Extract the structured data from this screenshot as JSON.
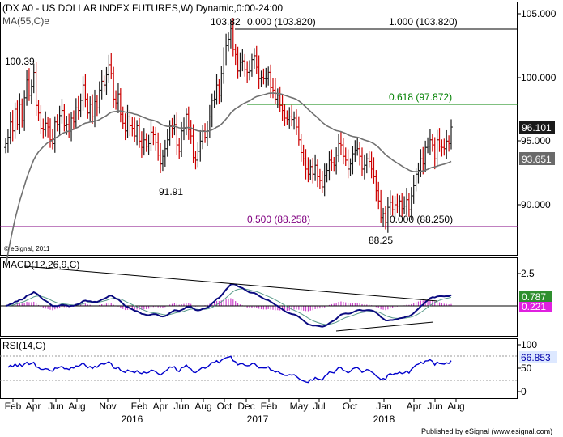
{
  "header": {
    "title": "(DX A0 - US DOLLAR INDEX FUTURES,W) Dynamic,0:00-24:00",
    "ma_label": "MA(55,C)e"
  },
  "chart_data": [
    {
      "type": "candlestick",
      "title": "(DX A0 - US DOLLAR INDEX FUTURES,W) Dynamic,0:00-24:00",
      "price_axis": {
        "ticks": [
          "105.000",
          "100.000",
          "95.000",
          "90.000"
        ],
        "ylim": [
          86.5,
          105.5
        ]
      },
      "price_badges": [
        {
          "label": "96.101",
          "style": "dark"
        },
        {
          "label": "93.651",
          "style": "gray"
        }
      ],
      "annotations": [
        "100.39",
        "103.82",
        "0.000 (103.820)",
        "1.000 (103.820)",
        "0.618 (97.872)",
        "91.91",
        "0.500 (88.258)",
        "0.000 (88.250)",
        "88.25",
        "© eSignal, 2011"
      ],
      "fib_levels": [
        {
          "label": "1.000 (103.820)",
          "value": 103.82,
          "color": "#000000"
        },
        {
          "label": "0.618 (97.872)",
          "value": 97.872,
          "color": "#008000"
        },
        {
          "label": "0.500 (88.258)",
          "value": 88.258,
          "color": "#800080"
        }
      ],
      "series": [
        {
          "name": "MA(55,C)e",
          "color": "#707070"
        }
      ],
      "weekly_close": [
        94.8,
        95.3,
        96.5,
        95.8,
        97.5,
        96.3,
        97.9,
        96.6,
        98.4,
        99.8,
        98.6,
        99.3,
        100.39,
        97.8,
        97.2,
        96.0,
        95.9,
        96.4,
        96.1,
        95.1,
        94.8,
        96.5,
        96.3,
        97.0,
        97.4,
        96.2,
        96.3,
        95.8,
        96.8,
        96.5,
        97.6,
        97.4,
        98.2,
        99.4,
        98.3,
        97.2,
        97.9,
        96.9,
        98.1,
        97.6,
        99.0,
        99.7,
        99.4,
        100.2,
        101.0,
        100.3,
        98.3,
        98.0,
        98.7,
        97.1,
        96.4,
        95.8,
        96.9,
        96.2,
        96.0,
        95.4,
        96.2,
        95.0,
        94.5,
        95.1,
        94.6,
        94.8,
        95.7,
        95.5,
        94.9,
        93.9,
        93.2,
        93.8,
        94.4,
        95.1,
        96.2,
        96.0,
        96.3,
        94.7,
        94.2,
        95.8,
        96.0,
        97.1,
        95.9,
        95.4,
        93.7,
        93.5,
        94.2,
        95.0,
        95.8,
        95.3,
        95.8,
        96.9,
        98.2,
        98.3,
        99.4,
        98.6,
        100.3,
        101.6,
        102.5,
        103.0,
        103.82,
        102.2,
        101.8,
        100.5,
        101.2,
        101.3,
        100.6,
        100.4,
        100.5,
        101.4,
        101.7,
        100.8,
        99.9,
        100.0,
        99.9,
        99.9,
        100.4,
        99.2,
        99.0,
        98.3,
        98.6,
        97.8,
        97.4,
        96.8,
        96.7,
        96.9,
        96.7,
        96.8,
        96.1,
        95.1,
        94.1,
        93.6,
        92.8,
        92.4,
        93.0,
        92.4,
        93.1,
        92.2,
        91.9,
        91.4,
        92.3,
        92.7,
        93.5,
        93.3,
        93.1,
        93.9,
        94.8,
        94.7,
        93.8,
        93.5,
        92.8,
        93.2,
        94.0,
        94.3,
        94.4,
        93.8,
        92.8,
        93.1,
        93.6,
        93.4,
        92.8,
        92.2,
        91.1,
        90.3,
        89.0,
        89.3,
        88.6,
        89.8,
        90.2,
        89.6,
        90.0,
        89.9,
        90.3,
        89.7,
        89.9,
        90.4,
        89.6,
        90.7,
        91.5,
        92.4,
        92.7,
        93.6,
        93.2,
        94.5,
        94.6,
        95.1,
        94.7,
        93.6,
        95.1,
        94.6,
        94.5,
        94.4,
        95.0,
        94.8,
        96.1
      ],
      "ma_curve": {
        "start": 0,
        "values": []
      }
    },
    {
      "type": "line",
      "title": "MACD(12,26,9,C)",
      "y_ticks": [
        "2.5"
      ],
      "badges": [
        {
          "label": "0.787",
          "color": "#0000aa"
        },
        {
          "label": "0.221",
          "color": "#cc00cc"
        }
      ],
      "series": [
        {
          "name": "MACD"
        },
        {
          "name": "Signal"
        },
        {
          "name": "Histogram"
        }
      ]
    },
    {
      "type": "line",
      "title": "RSI(14,C)",
      "y_ticks": [
        "100",
        "50",
        "0"
      ],
      "badges": [
        {
          "label": "66.853",
          "color": "#0000aa"
        }
      ],
      "series": [
        {
          "name": "RSI",
          "color": "#0000cc"
        }
      ]
    }
  ],
  "x_axis": {
    "months": [
      "Feb",
      "Apr",
      "Jun",
      "Aug",
      "Nov",
      "Feb",
      "Apr",
      "Jun",
      "Aug",
      "Oct",
      "Dec",
      "Feb",
      "May",
      "Jul",
      "Oct",
      "Jan",
      "Apr",
      "Jun",
      "Aug"
    ],
    "years": [
      "2016",
      "2017",
      "2018"
    ]
  },
  "footer": {
    "publisher": "Published by eSignal (www.esignal.com)"
  }
}
